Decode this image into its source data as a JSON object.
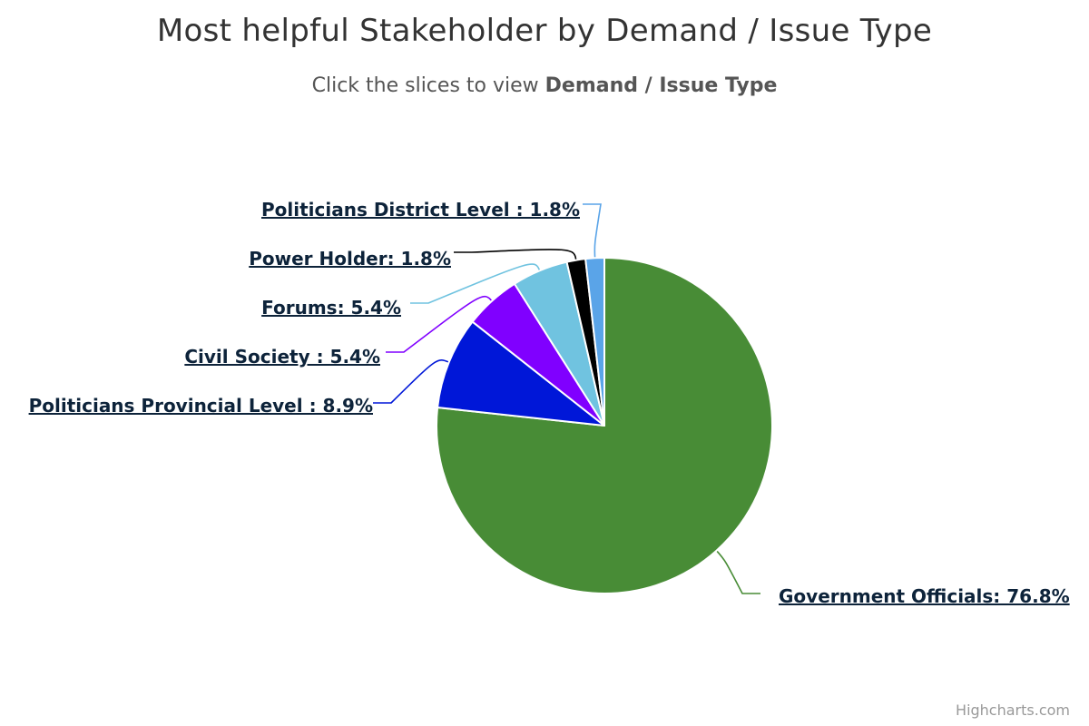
{
  "chart_data": {
    "type": "pie",
    "title": "Most helpful Stakeholder by Demand / Issue Type",
    "subtitle": {
      "prefix": "Click the slices to view ",
      "emphasis": "Demand / Issue Type"
    },
    "series": [
      {
        "values": [
          {
            "name": "Government Officials",
            "value": 76.8,
            "label": "Government Officials: 76.8%",
            "color": "#488c36"
          },
          {
            "name": "Politicians Provincial Level",
            "value": 8.9,
            "label": "Politicians Provincial Level : 8.9%",
            "color": "#0017d8"
          },
          {
            "name": "Civil Society",
            "value": 5.4,
            "label": "Civil Society : 5.4%",
            "color": "#8000ff"
          },
          {
            "name": "Forums",
            "value": 5.4,
            "label": "Forums: 5.4%",
            "color": "#70c3e0"
          },
          {
            "name": "Power Holder",
            "value": 1.8,
            "label": "Power Holder: 1.8%",
            "color": "#000000"
          },
          {
            "name": "Politicians District Level",
            "value": 1.8,
            "label": "Politicians District Level : 1.8%",
            "color": "#5aa4e8"
          }
        ]
      }
    ],
    "legend": "none"
  },
  "credits": "Highcharts.com"
}
